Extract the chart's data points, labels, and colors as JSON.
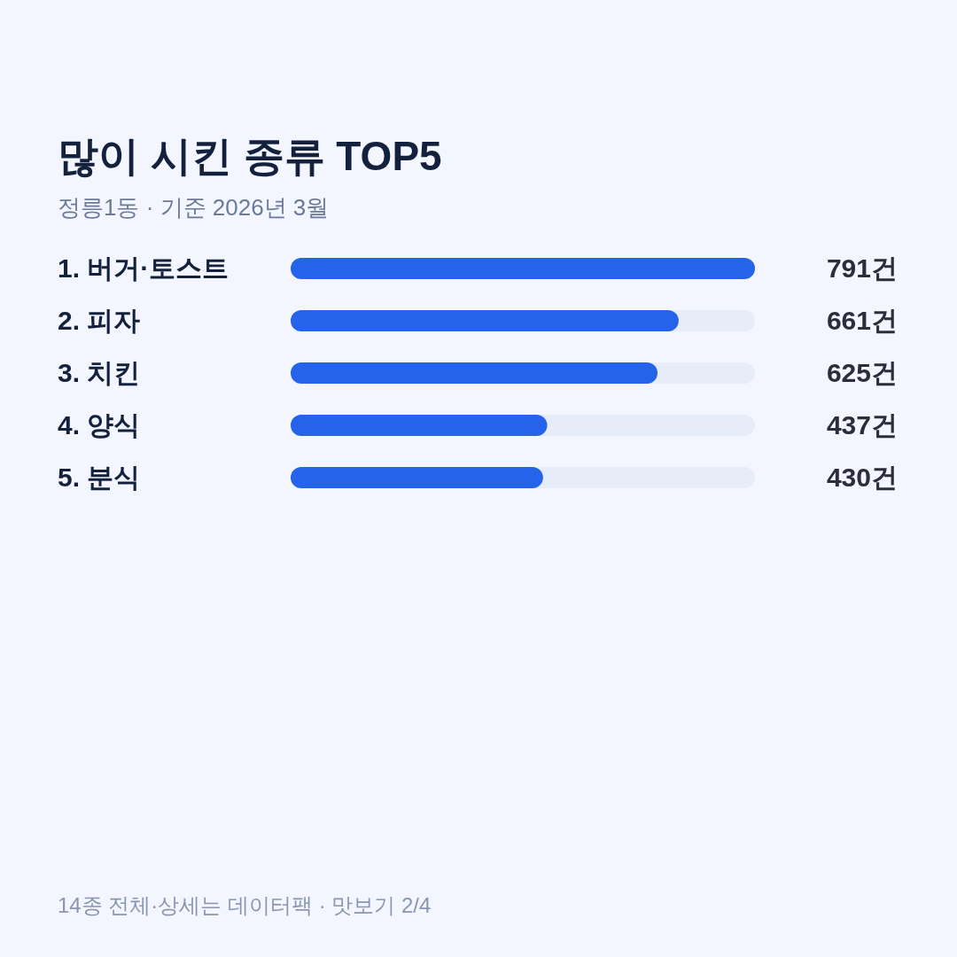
{
  "chart_data": {
    "type": "bar",
    "orientation": "horizontal",
    "title": "많이 시킨 종류 TOP5",
    "subtitle": "정릉1동 · 기준 2026년 3월",
    "categories": [
      "1. 버거·토스트",
      "2. 피자",
      "3. 치킨",
      "4. 양식",
      "5. 분식"
    ],
    "values": [
      791,
      661,
      625,
      437,
      430
    ],
    "value_labels": [
      "791건",
      "661건",
      "625건",
      "437건",
      "430건"
    ],
    "color": "#2563eb",
    "annotations": [
      "14종 전체·상세는 데이터팩 · 맛보기 2/4"
    ]
  }
}
